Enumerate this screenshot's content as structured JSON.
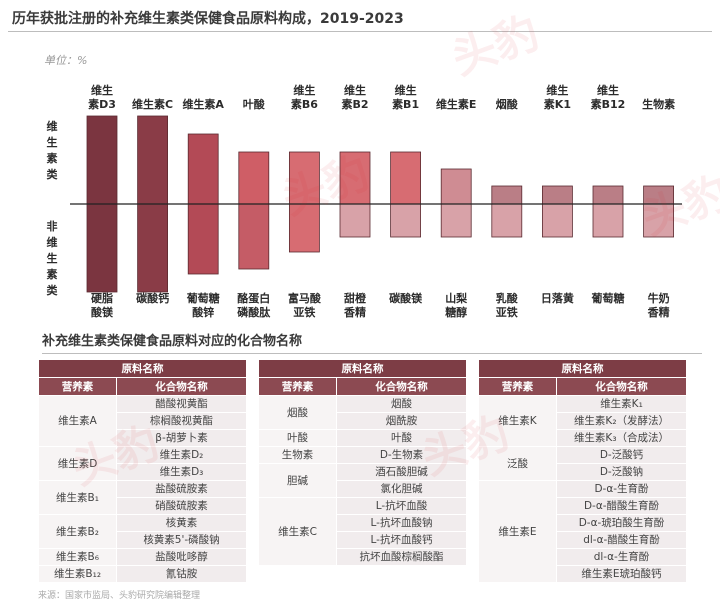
{
  "title": "历年获批注册的补充维生素类保健食品原料构成，2019-2023",
  "unit_label": "单位：%",
  "chart_data": {
    "type": "bar",
    "subtype": "diverging",
    "axis_labels": {
      "upper": "维生素类",
      "lower": "非维生素类"
    },
    "grid": false,
    "legend": false,
    "pairs": [
      {
        "vitamin": "维生素D3",
        "vitamin_value": 88,
        "other": "硬脂酸镁",
        "other_value": 88
      },
      {
        "vitamin": "维生素C",
        "vitamin_value": 88,
        "other": "碳酸钙",
        "other_value": 88
      },
      {
        "vitamin": "维生素A",
        "vitamin_value": 70,
        "other": "葡萄糖酸锌",
        "other_value": 70
      },
      {
        "vitamin": "叶酸",
        "vitamin_value": 52,
        "other": "酪蛋白磷酸肽",
        "other_value": 65
      },
      {
        "vitamin": "维生素B6",
        "vitamin_value": 52,
        "other": "富马酸亚铁",
        "other_value": 48
      },
      {
        "vitamin": "维生素B2",
        "vitamin_value": 52,
        "other": "甜橙香精",
        "other_value": 33
      },
      {
        "vitamin": "维生素B1",
        "vitamin_value": 52,
        "other": "碳酸镁",
        "other_value": 33
      },
      {
        "vitamin": "维生素E",
        "vitamin_value": 35,
        "other": "山梨糖醇",
        "other_value": 33
      },
      {
        "vitamin": "烟酸",
        "vitamin_value": 18,
        "other": "乳酸亚铁",
        "other_value": 33
      },
      {
        "vitamin": "维生素K1",
        "vitamin_value": 18,
        "other": "日落黄",
        "other_value": 33
      },
      {
        "vitamin": "维生素B12",
        "vitamin_value": 18,
        "other": "葡萄糖",
        "other_value": 33
      },
      {
        "vitamin": "生物素",
        "vitamin_value": 18,
        "other": "牛奶香精",
        "other_value": 33
      }
    ],
    "colors": {
      "upper": [
        "#7b3540",
        "#8a3c47",
        "#b34a56",
        "#cf5e66",
        "#d76c72",
        "#d76c72",
        "#d76c72",
        "#cf8c93",
        "#ba7e86",
        "#ba7e86",
        "#ba7e86",
        "#ba7e86"
      ],
      "lower": [
        "#7b3540",
        "#8a3c47",
        "#b34a56",
        "#c55c66",
        "#d76c72",
        "#d8a2a8",
        "#d8a2a8",
        "#d8a2a8",
        "#d8a2a8",
        "#d8a2a8",
        "#d8a2a8",
        "#d8a2a8"
      ]
    }
  },
  "section_title": "补充维生素类保健食品原料对应的化合物名称",
  "tables": [
    {
      "title": "原料名称",
      "col1": "营养素",
      "col2": "化合物名称",
      "groups": [
        {
          "nutrient": "维生素A",
          "compounds": [
            "醋酸视黄酯",
            "棕榈酸视黄酯",
            "β-胡萝卜素"
          ]
        },
        {
          "nutrient": "维生素D",
          "compounds": [
            "维生素D₂",
            "维生素D₃"
          ]
        },
        {
          "nutrient": "维生素B₁",
          "compounds": [
            "盐酸硫胺素",
            "硝酸硫胺素"
          ]
        },
        {
          "nutrient": "维生素B₂",
          "compounds": [
            "核黄素",
            "核黄素5'-磷酸钠"
          ]
        },
        {
          "nutrient": "维生素B₆",
          "compounds": [
            "盐酸吡哆醇"
          ]
        },
        {
          "nutrient": "维生素B₁₂",
          "compounds": [
            "氰钴胺"
          ]
        }
      ]
    },
    {
      "title": "原料名称",
      "col1": "营养素",
      "col2": "化合物名称",
      "groups": [
        {
          "nutrient": "烟酸",
          "compounds": [
            "烟酸",
            "烟酰胺"
          ]
        },
        {
          "nutrient": "叶酸",
          "compounds": [
            "叶酸"
          ]
        },
        {
          "nutrient": "生物素",
          "compounds": [
            "D-生物素"
          ]
        },
        {
          "nutrient": "胆碱",
          "compounds": [
            "酒石酸胆碱",
            "氯化胆碱"
          ]
        },
        {
          "nutrient": "维生素C",
          "compounds": [
            "L-抗坏血酸",
            "L-抗坏血酸钠",
            "L-抗坏血酸钙",
            "抗坏血酸棕榈酸酯"
          ]
        }
      ]
    },
    {
      "title": "原料名称",
      "col1": "营养素",
      "col2": "化合物名称",
      "groups": [
        {
          "nutrient": "维生素K",
          "compounds": [
            "维生素K₁",
            "维生素K₂（发酵法）",
            "维生素K₃（合成法）"
          ]
        },
        {
          "nutrient": "泛酸",
          "compounds": [
            "D-泛酸钙",
            "D-泛酸钠"
          ]
        },
        {
          "nutrient": "维生素E",
          "compounds": [
            "D-α-生育酚",
            "D-α-醋酸生育酚",
            "D-α-琥珀酸生育酚",
            "dl-α-醋酸生育酚",
            "dl-α-生育酚",
            "维生素E琥珀酸钙"
          ]
        }
      ]
    }
  ],
  "source": "来源：国家市监局、头豹研究院编辑整理",
  "watermark": "头豹"
}
